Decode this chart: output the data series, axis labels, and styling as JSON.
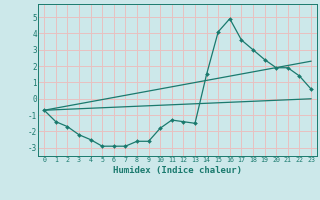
{
  "xlabel": "Humidex (Indice chaleur)",
  "background_color": "#cce8ea",
  "grid_color": "#e8c0c0",
  "line_color": "#1a7a6e",
  "xlim": [
    -0.5,
    23.5
  ],
  "ylim": [
    -3.5,
    5.8
  ],
  "yticks": [
    -3,
    -2,
    -1,
    0,
    1,
    2,
    3,
    4,
    5
  ],
  "xticks": [
    0,
    1,
    2,
    3,
    4,
    5,
    6,
    7,
    8,
    9,
    10,
    11,
    12,
    13,
    14,
    15,
    16,
    17,
    18,
    19,
    20,
    21,
    22,
    23
  ],
  "series": [
    {
      "x": [
        0,
        1,
        2,
        3,
        4,
        5,
        6,
        7,
        8,
        9,
        10,
        11,
        12,
        13,
        14,
        15,
        16,
        17,
        18,
        19,
        20,
        21,
        22,
        23
      ],
      "y": [
        -0.7,
        -1.4,
        -1.7,
        -2.2,
        -2.5,
        -2.9,
        -2.9,
        -2.9,
        -2.6,
        -2.6,
        -1.8,
        -1.3,
        -1.4,
        -1.5,
        1.5,
        4.1,
        4.9,
        3.6,
        3.0,
        2.4,
        1.9,
        1.9,
        1.4,
        0.6
      ]
    },
    {
      "x": [
        0,
        23
      ],
      "y": [
        -0.7,
        0.0
      ]
    },
    {
      "x": [
        0,
        23
      ],
      "y": [
        -0.7,
        2.3
      ]
    }
  ]
}
